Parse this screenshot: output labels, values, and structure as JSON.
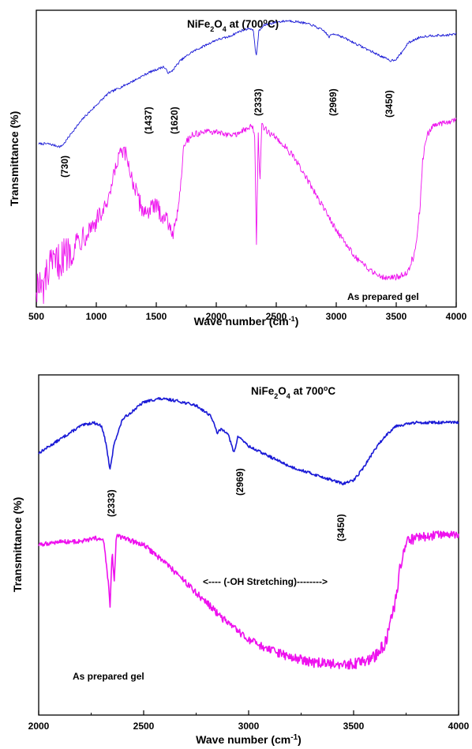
{
  "colors": {
    "calcined": "#1a1ad6",
    "gel": "#ee10ee",
    "axis": "#000000"
  },
  "chart_data": [
    {
      "type": "line",
      "title_parts": {
        "main": "NiFe",
        "sub": "2",
        "sub2": "4",
        "rest": " at (700",
        "deg": "o",
        "end": "C)",
        "o": "O"
      },
      "xlabel": "Wave number (cm",
      "xlabel_sup": "-1",
      "xlabel_end": ")",
      "ylabel": "Transmittance (%)",
      "xlim": [
        500,
        4000
      ],
      "xticks": [
        "500",
        "1000",
        "1500",
        "2000",
        "2500",
        "3000",
        "3500",
        "4000"
      ],
      "x_tick_values": [
        500,
        1000,
        1500,
        2000,
        2500,
        3000,
        3500,
        4000
      ],
      "y_ticks_shown": false,
      "series": [
        {
          "name": "NiFe2O4 at (700°C)",
          "color": "#1a1ad6",
          "noise": 0.004,
          "points": [
            [
              520,
              0.55
            ],
            [
              600,
              0.55
            ],
            [
              700,
              0.54
            ],
            [
              730,
              0.55
            ],
            [
              800,
              0.59
            ],
            [
              900,
              0.64
            ],
            [
              1000,
              0.68
            ],
            [
              1100,
              0.72
            ],
            [
              1200,
              0.74
            ],
            [
              1300,
              0.76
            ],
            [
              1437,
              0.79
            ],
            [
              1500,
              0.8
            ],
            [
              1560,
              0.81
            ],
            [
              1600,
              0.79
            ],
            [
              1620,
              0.79
            ],
            [
              1660,
              0.81
            ],
            [
              1700,
              0.83
            ],
            [
              1800,
              0.86
            ],
            [
              1900,
              0.88
            ],
            [
              2000,
              0.9
            ],
            [
              2100,
              0.91
            ],
            [
              2200,
              0.93
            ],
            [
              2280,
              0.94
            ],
            [
              2310,
              0.93
            ],
            [
              2333,
              0.84
            ],
            [
              2355,
              0.93
            ],
            [
              2400,
              0.95
            ],
            [
              2500,
              0.96
            ],
            [
              2600,
              0.965
            ],
            [
              2700,
              0.96
            ],
            [
              2800,
              0.95
            ],
            [
              2900,
              0.93
            ],
            [
              2940,
              0.91
            ],
            [
              2969,
              0.92
            ],
            [
              3000,
              0.92
            ],
            [
              3100,
              0.9
            ],
            [
              3200,
              0.88
            ],
            [
              3300,
              0.86
            ],
            [
              3400,
              0.84
            ],
            [
              3450,
              0.83
            ],
            [
              3500,
              0.835
            ],
            [
              3550,
              0.86
            ],
            [
              3600,
              0.89
            ],
            [
              3700,
              0.91
            ],
            [
              3800,
              0.915
            ],
            [
              3900,
              0.915
            ],
            [
              4000,
              0.92
            ]
          ]
        },
        {
          "name": "As prepared gel",
          "color": "#ee10ee",
          "noise_profile": [
            [
              500,
              0.07
            ],
            [
              800,
              0.06
            ],
            [
              1100,
              0.025
            ],
            [
              1300,
              0.03
            ],
            [
              1450,
              0.03
            ],
            [
              1600,
              0.03
            ],
            [
              1700,
              0.015
            ],
            [
              2000,
              0.008
            ],
            [
              2300,
              0.012
            ],
            [
              2600,
              0.012
            ],
            [
              3000,
              0.01
            ],
            [
              3400,
              0.01
            ],
            [
              3600,
              0.012
            ],
            [
              3700,
              0.02
            ],
            [
              3800,
              0.01
            ],
            [
              4000,
              0.008
            ]
          ],
          "points": [
            [
              500,
              0.08
            ],
            [
              550,
              0.05
            ],
            [
              600,
              0.12
            ],
            [
              700,
              0.16
            ],
            [
              800,
              0.2
            ],
            [
              900,
              0.25
            ],
            [
              1000,
              0.29
            ],
            [
              1100,
              0.35
            ],
            [
              1150,
              0.45
            ],
            [
              1200,
              0.52
            ],
            [
              1250,
              0.51
            ],
            [
              1300,
              0.43
            ],
            [
              1350,
              0.36
            ],
            [
              1400,
              0.32
            ],
            [
              1450,
              0.33
            ],
            [
              1500,
              0.34
            ],
            [
              1550,
              0.31
            ],
            [
              1600,
              0.29
            ],
            [
              1640,
              0.25
            ],
            [
              1660,
              0.27
            ],
            [
              1700,
              0.4
            ],
            [
              1730,
              0.55
            ],
            [
              1800,
              0.58
            ],
            [
              1900,
              0.59
            ],
            [
              2000,
              0.59
            ],
            [
              2100,
              0.58
            ],
            [
              2150,
              0.58
            ],
            [
              2200,
              0.59
            ],
            [
              2260,
              0.6
            ],
            [
              2300,
              0.61
            ],
            [
              2320,
              0.58
            ],
            [
              2335,
              0.22
            ],
            [
              2350,
              0.58
            ],
            [
              2365,
              0.42
            ],
            [
              2380,
              0.62
            ],
            [
              2400,
              0.6
            ],
            [
              2500,
              0.57
            ],
            [
              2600,
              0.53
            ],
            [
              2700,
              0.47
            ],
            [
              2800,
              0.4
            ],
            [
              2900,
              0.33
            ],
            [
              3000,
              0.26
            ],
            [
              3100,
              0.2
            ],
            [
              3200,
              0.15
            ],
            [
              3300,
              0.12
            ],
            [
              3400,
              0.1
            ],
            [
              3500,
              0.1
            ],
            [
              3600,
              0.12
            ],
            [
              3650,
              0.18
            ],
            [
              3700,
              0.33
            ],
            [
              3720,
              0.5
            ],
            [
              3750,
              0.57
            ],
            [
              3800,
              0.61
            ],
            [
              3900,
              0.62
            ],
            [
              4000,
              0.63
            ]
          ]
        }
      ],
      "annotations": [
        "(730)",
        "(1437)",
        "(1620)",
        "(2333)",
        "(2969)",
        "(3450)"
      ],
      "annotation_x": [
        730,
        1437,
        1620,
        2333,
        2969,
        3450
      ],
      "gel_label": "As prepared gel"
    },
    {
      "type": "line",
      "title_parts": {
        "main": "NiFe",
        "sub": "2",
        "sub2": "4",
        "rest": " at 700",
        "deg": "o",
        "end": "C",
        "o": "O"
      },
      "xlabel": "Wave number (cm",
      "xlabel_sup": "-1",
      "xlabel_end": ")",
      "ylabel": "Transmittance (%)",
      "xlim": [
        2000,
        4000
      ],
      "xticks": [
        "2000",
        "2500",
        "3000",
        "3500",
        "4000"
      ],
      "x_tick_values": [
        2000,
        2500,
        3000,
        3500,
        4000
      ],
      "y_ticks_shown": false,
      "series": [
        {
          "name": "NiFe2O4 at 700°C",
          "color": "#1a1ad6",
          "noise": 0.004,
          "points": [
            [
              2000,
              0.77
            ],
            [
              2100,
              0.81
            ],
            [
              2200,
              0.85
            ],
            [
              2260,
              0.86
            ],
            [
              2300,
              0.85
            ],
            [
              2320,
              0.8
            ],
            [
              2340,
              0.72
            ],
            [
              2360,
              0.8
            ],
            [
              2400,
              0.87
            ],
            [
              2500,
              0.92
            ],
            [
              2570,
              0.93
            ],
            [
              2650,
              0.925
            ],
            [
              2750,
              0.91
            ],
            [
              2820,
              0.88
            ],
            [
              2850,
              0.83
            ],
            [
              2870,
              0.84
            ],
            [
              2900,
              0.83
            ],
            [
              2930,
              0.77
            ],
            [
              2950,
              0.82
            ],
            [
              2969,
              0.81
            ],
            [
              3000,
              0.79
            ],
            [
              3100,
              0.76
            ],
            [
              3200,
              0.73
            ],
            [
              3300,
              0.71
            ],
            [
              3400,
              0.69
            ],
            [
              3450,
              0.68
            ],
            [
              3500,
              0.69
            ],
            [
              3550,
              0.73
            ],
            [
              3600,
              0.78
            ],
            [
              3650,
              0.82
            ],
            [
              3700,
              0.85
            ],
            [
              3800,
              0.86
            ],
            [
              3900,
              0.86
            ],
            [
              4000,
              0.86
            ]
          ]
        },
        {
          "name": "As prepared gel",
          "color": "#ee10ee",
          "noise_profile": [
            [
              2000,
              0.006
            ],
            [
              2500,
              0.008
            ],
            [
              3000,
              0.012
            ],
            [
              3400,
              0.015
            ],
            [
              3600,
              0.018
            ],
            [
              3700,
              0.02
            ],
            [
              3800,
              0.015
            ],
            [
              4000,
              0.01
            ]
          ],
          "points": [
            [
              2000,
              0.5
            ],
            [
              2100,
              0.51
            ],
            [
              2200,
              0.51
            ],
            [
              2280,
              0.52
            ],
            [
              2310,
              0.51
            ],
            [
              2330,
              0.4
            ],
            [
              2340,
              0.32
            ],
            [
              2350,
              0.48
            ],
            [
              2360,
              0.39
            ],
            [
              2370,
              0.53
            ],
            [
              2400,
              0.52
            ],
            [
              2500,
              0.5
            ],
            [
              2600,
              0.45
            ],
            [
              2700,
              0.39
            ],
            [
              2800,
              0.33
            ],
            [
              2900,
              0.27
            ],
            [
              3000,
              0.22
            ],
            [
              3100,
              0.19
            ],
            [
              3200,
              0.17
            ],
            [
              3300,
              0.155
            ],
            [
              3400,
              0.15
            ],
            [
              3500,
              0.15
            ],
            [
              3600,
              0.17
            ],
            [
              3650,
              0.21
            ],
            [
              3680,
              0.28
            ],
            [
              3700,
              0.34
            ],
            [
              3720,
              0.43
            ],
            [
              3740,
              0.49
            ],
            [
              3760,
              0.51
            ],
            [
              3800,
              0.52
            ],
            [
              3900,
              0.53
            ],
            [
              4000,
              0.53
            ]
          ]
        }
      ],
      "annotations": [
        "(2333)",
        "(2969)",
        "(3450)"
      ],
      "annotation_x": [
        2333,
        2969,
        3450
      ],
      "gel_label": "As prepared gel",
      "stretching_label": "<---- (-OH Stretching)-------->"
    }
  ]
}
